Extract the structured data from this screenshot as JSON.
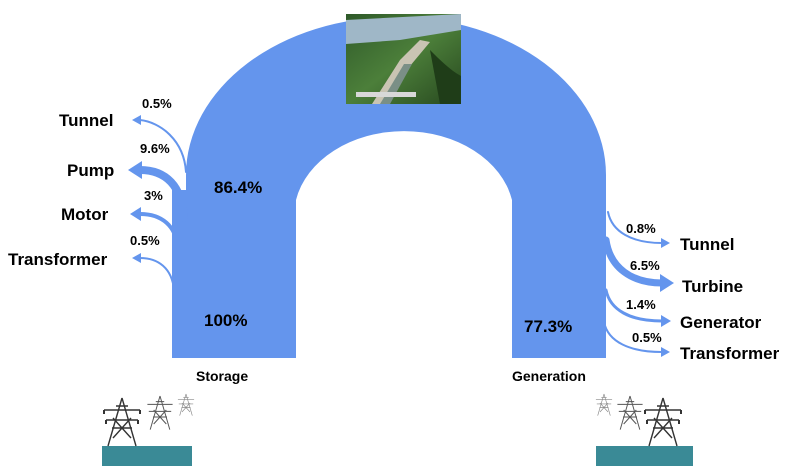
{
  "colors": {
    "flow": "#6495ed",
    "ground": "#3a8a96",
    "tower": "#333333"
  },
  "storage": {
    "label": "Storage",
    "input_pct": "100%",
    "arch_pct": "86.4%",
    "losses": [
      {
        "name": "Tunnel",
        "pct": "0.5%"
      },
      {
        "name": "Pump",
        "pct": "9.6%"
      },
      {
        "name": "Motor",
        "pct": "3%"
      },
      {
        "name": "Transformer",
        "pct": "0.5%"
      }
    ]
  },
  "generation": {
    "label": "Generation",
    "output_pct": "77.3%",
    "losses": [
      {
        "name": "Tunnel",
        "pct": "0.8%"
      },
      {
        "name": "Turbine",
        "pct": "6.5%"
      },
      {
        "name": "Generator",
        "pct": "1.4%"
      },
      {
        "name": "Transformer",
        "pct": "0.5%"
      }
    ]
  },
  "photo": {
    "subject": "pumped-storage hydro plant aerial photo"
  },
  "icons": [
    "power-tower-icon",
    "power-tower-icon",
    "power-tower-icon"
  ]
}
